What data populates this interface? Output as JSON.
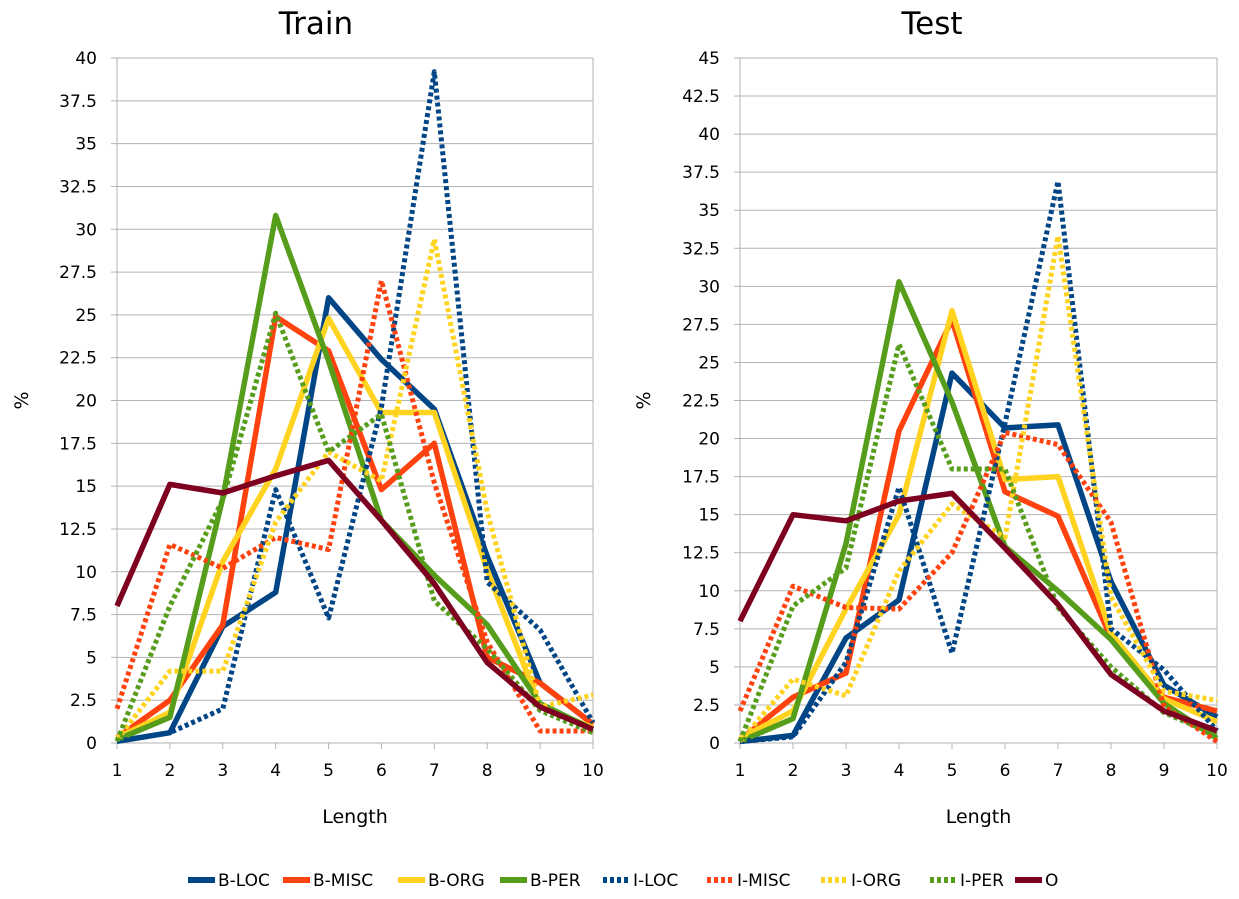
{
  "series_styles": [
    {
      "color": "#004586",
      "dash": "solid"
    },
    {
      "color": "#ff420e",
      "dash": "solid"
    },
    {
      "color": "#ffd320",
      "dash": "solid"
    },
    {
      "color": "#579d1c",
      "dash": "solid"
    },
    {
      "color": "#004586",
      "dash": "dotted"
    },
    {
      "color": "#ff420e",
      "dash": "dotted"
    },
    {
      "color": "#ffd320",
      "dash": "dotted"
    },
    {
      "color": "#579d1c",
      "dash": "dotted"
    },
    {
      "color": "#7e0021",
      "dash": "solid"
    }
  ],
  "chart_data": [
    {
      "type": "line",
      "title": "Train",
      "xlabel": "Length",
      "ylabel": "%",
      "x": [
        1,
        2,
        3,
        4,
        5,
        6,
        7,
        8,
        9,
        10
      ],
      "ylim": [
        0,
        40
      ],
      "yticks": [
        "0",
        "2.5",
        "5",
        "7.5",
        "10",
        "12.5",
        "15",
        "17.5",
        "20",
        "22.5",
        "25",
        "27.5",
        "30",
        "32.5",
        "35",
        "37.5",
        "40"
      ],
      "grid": true,
      "legend": "bottom",
      "series": [
        {
          "name": "B-LOC",
          "values": [
            0.1,
            0.6,
            6.8,
            8.8,
            26.0,
            22.4,
            19.5,
            10.9,
            3.5,
            1.1
          ]
        },
        {
          "name": "B-MISC",
          "values": [
            0.3,
            2.5,
            6.9,
            24.9,
            22.9,
            14.8,
            17.5,
            5.0,
            3.5,
            1.1
          ]
        },
        {
          "name": "B-ORG",
          "values": [
            0.3,
            1.8,
            10.6,
            16.0,
            24.8,
            19.3,
            19.3,
            10.1,
            2.1,
            0.9
          ]
        },
        {
          "name": "B-PER",
          "values": [
            0.2,
            1.5,
            14.3,
            30.8,
            22.3,
            13.0,
            9.8,
            6.9,
            2.3,
            0.8
          ]
        },
        {
          "name": "I-LOC",
          "values": [
            0.1,
            0.6,
            2.0,
            14.8,
            7.3,
            19.6,
            39.2,
            9.4,
            6.6,
            1.2
          ]
        },
        {
          "name": "I-MISC",
          "values": [
            2.0,
            11.6,
            10.2,
            12.0,
            11.3,
            27.0,
            15.2,
            5.9,
            0.7,
            0.7
          ]
        },
        {
          "name": "I-ORG",
          "values": [
            0.2,
            4.2,
            4.2,
            12.9,
            17.0,
            15.3,
            29.4,
            13.5,
            2.1,
            2.8
          ]
        },
        {
          "name": "I-PER",
          "values": [
            0.1,
            8.0,
            14.2,
            25.1,
            17.0,
            19.2,
            8.3,
            5.5,
            1.9,
            0.6
          ]
        },
        {
          "name": "O",
          "values": [
            8.0,
            15.1,
            14.6,
            15.6,
            16.5,
            13.0,
            9.3,
            4.7,
            2.1,
            0.8
          ]
        }
      ]
    },
    {
      "type": "line",
      "title": "Test",
      "xlabel": "Length",
      "ylabel": "%",
      "x": [
        1,
        2,
        3,
        4,
        5,
        6,
        7,
        8,
        9,
        10
      ],
      "ylim": [
        0,
        45
      ],
      "yticks": [
        "0",
        "2.5",
        "5",
        "7.5",
        "10",
        "12.5",
        "15",
        "17.5",
        "20",
        "22.5",
        "25",
        "27.5",
        "30",
        "32.5",
        "35",
        "37.5",
        "40",
        "42.5",
        "45"
      ],
      "grid": true,
      "legend": "bottom",
      "series": [
        {
          "name": "B-LOC",
          "values": [
            0.1,
            0.5,
            6.9,
            9.4,
            24.3,
            20.7,
            20.9,
            10.6,
            3.8,
            1.7
          ]
        },
        {
          "name": "B-MISC",
          "values": [
            0.2,
            3.0,
            4.6,
            20.5,
            27.8,
            16.5,
            14.9,
            6.9,
            3.0,
            2.1
          ]
        },
        {
          "name": "B-ORG",
          "values": [
            0.3,
            2.1,
            8.8,
            15.0,
            28.4,
            17.3,
            17.5,
            7.2,
            2.9,
            1.4
          ]
        },
        {
          "name": "B-PER",
          "values": [
            0.1,
            1.6,
            13.1,
            30.3,
            22.4,
            12.9,
            10.0,
            6.8,
            2.6,
            0.3
          ]
        },
        {
          "name": "I-LOC",
          "values": [
            0.1,
            0.4,
            5.3,
            16.8,
            5.9,
            21.0,
            36.9,
            7.5,
            4.8,
            0.8
          ]
        },
        {
          "name": "I-MISC",
          "values": [
            2.1,
            10.3,
            8.9,
            8.8,
            12.5,
            20.4,
            19.6,
            14.5,
            2.4,
            0.1
          ]
        },
        {
          "name": "I-ORG",
          "values": [
            0.1,
            4.2,
            3.1,
            11.3,
            15.7,
            13.5,
            33.3,
            9.6,
            3.4,
            2.8
          ]
        },
        {
          "name": "I-PER",
          "values": [
            0.1,
            9.0,
            11.5,
            26.2,
            18.0,
            18.0,
            8.9,
            5.0,
            2.0,
            0.5
          ]
        },
        {
          "name": "O",
          "values": [
            8.0,
            15.0,
            14.6,
            15.9,
            16.4,
            12.8,
            9.1,
            4.5,
            2.1,
            0.8
          ]
        }
      ]
    }
  ]
}
